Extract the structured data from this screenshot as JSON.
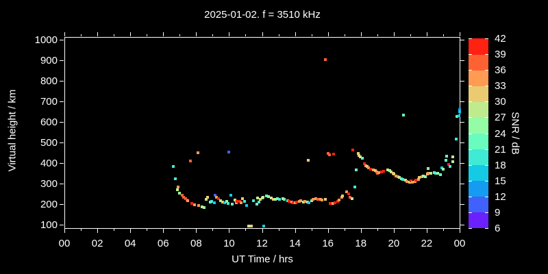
{
  "chart_data": {
    "type": "scatter",
    "title": "2025-01-02. f = 3510 kHz",
    "xlabel": "UT Time / hrs",
    "ylabel": "Virtual height / km",
    "colorbar_label": "SNR / dB",
    "xlim_hours": [
      0,
      24
    ],
    "ylim_km": [
      83,
      1013
    ],
    "x_major_tick_hours": [
      0,
      2,
      4,
      6,
      8,
      10,
      12,
      14,
      16,
      18,
      20,
      22,
      24
    ],
    "x_tick_labels": [
      "00",
      "02",
      "04",
      "06",
      "08",
      "10",
      "12",
      "14",
      "16",
      "18",
      "20",
      "22",
      "00"
    ],
    "x_minor_tick_step_hours": 1,
    "y_tick_values_km": [
      100,
      200,
      300,
      400,
      500,
      600,
      700,
      800,
      900,
      1000
    ],
    "grid": "off",
    "background": "#000000",
    "axis_color": "#ffffff",
    "colorbar": {
      "min_db": 6,
      "max_db": 42,
      "tick_values_db": [
        6,
        9,
        12,
        15,
        18,
        21,
        24,
        27,
        30,
        33,
        36,
        39,
        42
      ],
      "segment_colors_bottom_to_top": [
        "#6a21fe",
        "#4062fa",
        "#159bf2",
        "#15cae5",
        "#3febd4",
        "#6afcbf",
        "#94fca7",
        "#bfeb8e",
        "#eacb71",
        "#ff9b52",
        "#ff6232",
        "#ff2111"
      ]
    },
    "points_hr_km_snr": [
      [
        6.6,
        385,
        20
      ],
      [
        6.75,
        325,
        20
      ],
      [
        6.85,
        270,
        29
      ],
      [
        6.9,
        285,
        35
      ],
      [
        7.0,
        255,
        26
      ],
      [
        7.15,
        245,
        38
      ],
      [
        7.25,
        233,
        38
      ],
      [
        7.35,
        227,
        38
      ],
      [
        7.45,
        220,
        41
      ],
      [
        7.5,
        217,
        35
      ],
      [
        7.65,
        410,
        38
      ],
      [
        7.75,
        203,
        41
      ],
      [
        7.9,
        197,
        35
      ],
      [
        8.1,
        450,
        35
      ],
      [
        8.15,
        193,
        35
      ],
      [
        8.35,
        187,
        29
      ],
      [
        8.5,
        183,
        26
      ],
      [
        8.6,
        223,
        29
      ],
      [
        8.7,
        233,
        32
      ],
      [
        8.85,
        210,
        26
      ],
      [
        8.95,
        213,
        20
      ],
      [
        9.1,
        207,
        17
      ],
      [
        9.15,
        243,
        11
      ],
      [
        9.25,
        233,
        35
      ],
      [
        9.35,
        227,
        41
      ],
      [
        9.5,
        217,
        29
      ],
      [
        9.6,
        210,
        32
      ],
      [
        9.75,
        207,
        17
      ],
      [
        9.85,
        213,
        26
      ],
      [
        9.95,
        203,
        20
      ],
      [
        10.0,
        455,
        11
      ],
      [
        10.1,
        245,
        17
      ],
      [
        10.2,
        200,
        23
      ],
      [
        10.35,
        220,
        29
      ],
      [
        10.45,
        207,
        35
      ],
      [
        10.5,
        213,
        41
      ],
      [
        10.65,
        213,
        41
      ],
      [
        10.75,
        207,
        35
      ],
      [
        10.8,
        227,
        32
      ],
      [
        10.95,
        213,
        20
      ],
      [
        11.05,
        193,
        17
      ],
      [
        11.2,
        95,
        29
      ],
      [
        11.35,
        95,
        32
      ],
      [
        11.5,
        217,
        20
      ],
      [
        11.7,
        200,
        23
      ],
      [
        11.75,
        230,
        29
      ],
      [
        11.8,
        210,
        20
      ],
      [
        11.9,
        223,
        32
      ],
      [
        12.0,
        230,
        26
      ],
      [
        12.05,
        233,
        29
      ],
      [
        12.1,
        95,
        17
      ],
      [
        12.25,
        240,
        23
      ],
      [
        12.4,
        237,
        26
      ],
      [
        12.55,
        230,
        29
      ],
      [
        12.7,
        223,
        32
      ],
      [
        12.8,
        223,
        29
      ],
      [
        12.95,
        227,
        23
      ],
      [
        13.05,
        223,
        20
      ],
      [
        13.25,
        227,
        29
      ],
      [
        13.35,
        223,
        23
      ],
      [
        13.55,
        217,
        20
      ],
      [
        13.65,
        213,
        41
      ],
      [
        13.8,
        210,
        35
      ],
      [
        13.9,
        207,
        41
      ],
      [
        14.0,
        207,
        35
      ],
      [
        14.1,
        210,
        41
      ],
      [
        14.25,
        213,
        35
      ],
      [
        14.35,
        217,
        35
      ],
      [
        14.5,
        210,
        29
      ],
      [
        14.6,
        213,
        35
      ],
      [
        14.75,
        210,
        26
      ],
      [
        14.8,
        413,
        32
      ],
      [
        14.85,
        207,
        17
      ],
      [
        15.0,
        217,
        23
      ],
      [
        15.1,
        223,
        35
      ],
      [
        15.25,
        227,
        35
      ],
      [
        15.4,
        223,
        38
      ],
      [
        15.55,
        223,
        35
      ],
      [
        15.65,
        220,
        35
      ],
      [
        15.85,
        905,
        38
      ],
      [
        15.85,
        223,
        32
      ],
      [
        16.0,
        447,
        38
      ],
      [
        16.1,
        440,
        38
      ],
      [
        16.15,
        203,
        41
      ],
      [
        16.3,
        203,
        35
      ],
      [
        16.35,
        443,
        41
      ],
      [
        16.45,
        207,
        41
      ],
      [
        16.6,
        213,
        41
      ],
      [
        16.7,
        220,
        35
      ],
      [
        16.85,
        233,
        35
      ],
      [
        16.9,
        240,
        32
      ],
      [
        17.15,
        260,
        35
      ],
      [
        17.25,
        250,
        41
      ],
      [
        17.35,
        233,
        38
      ],
      [
        17.45,
        227,
        29
      ],
      [
        17.5,
        463,
        41
      ],
      [
        17.65,
        283,
        20
      ],
      [
        17.7,
        367,
        23
      ],
      [
        17.85,
        447,
        32
      ],
      [
        17.9,
        437,
        32
      ],
      [
        17.95,
        430,
        29
      ],
      [
        18.1,
        423,
        23
      ],
      [
        18.2,
        397,
        41
      ],
      [
        18.3,
        387,
        35
      ],
      [
        18.4,
        383,
        32
      ],
      [
        18.45,
        377,
        35
      ],
      [
        18.6,
        370,
        41
      ],
      [
        18.75,
        367,
        35
      ],
      [
        18.9,
        363,
        32
      ],
      [
        18.95,
        357,
        35
      ],
      [
        19.0,
        350,
        38
      ],
      [
        19.1,
        353,
        35
      ],
      [
        19.25,
        357,
        41
      ],
      [
        19.4,
        360,
        41
      ],
      [
        19.65,
        367,
        29
      ],
      [
        19.75,
        363,
        26
      ],
      [
        19.85,
        357,
        29
      ],
      [
        19.95,
        350,
        32
      ],
      [
        20.0,
        347,
        32
      ],
      [
        20.15,
        337,
        35
      ],
      [
        20.25,
        333,
        35
      ],
      [
        20.35,
        330,
        29
      ],
      [
        20.45,
        323,
        23
      ],
      [
        20.55,
        320,
        20
      ],
      [
        20.6,
        635,
        23
      ],
      [
        20.7,
        317,
        29
      ],
      [
        20.8,
        310,
        35
      ],
      [
        20.95,
        307,
        32
      ],
      [
        21.05,
        313,
        41
      ],
      [
        21.15,
        307,
        35
      ],
      [
        21.3,
        310,
        35
      ],
      [
        21.35,
        317,
        41
      ],
      [
        21.5,
        320,
        35
      ],
      [
        21.55,
        330,
        32
      ],
      [
        21.7,
        333,
        35
      ],
      [
        21.8,
        337,
        29
      ],
      [
        21.9,
        333,
        26
      ],
      [
        22.05,
        347,
        32
      ],
      [
        22.1,
        350,
        35
      ],
      [
        22.1,
        373,
        26
      ],
      [
        22.25,
        350,
        29
      ],
      [
        22.45,
        353,
        23
      ],
      [
        22.55,
        350,
        20
      ],
      [
        22.65,
        350,
        26
      ],
      [
        22.85,
        343,
        23
      ],
      [
        22.9,
        377,
        17
      ],
      [
        23.0,
        370,
        26
      ],
      [
        23.15,
        413,
        23
      ],
      [
        23.2,
        433,
        23
      ],
      [
        23.35,
        393,
        41
      ],
      [
        23.4,
        383,
        20
      ],
      [
        23.6,
        407,
        29
      ],
      [
        23.6,
        430,
        29
      ],
      [
        23.8,
        517,
        20
      ],
      [
        23.85,
        627,
        23
      ],
      [
        23.95,
        630,
        17
      ],
      [
        24.0,
        660,
        14
      ],
      [
        24.0,
        650,
        17
      ]
    ]
  }
}
